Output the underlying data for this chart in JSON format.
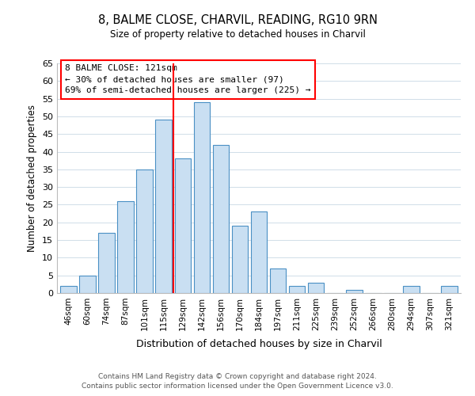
{
  "title": "8, BALME CLOSE, CHARVIL, READING, RG10 9RN",
  "subtitle": "Size of property relative to detached houses in Charvil",
  "xlabel": "Distribution of detached houses by size in Charvil",
  "ylabel": "Number of detached properties",
  "bar_labels": [
    "46sqm",
    "60sqm",
    "74sqm",
    "87sqm",
    "101sqm",
    "115sqm",
    "129sqm",
    "142sqm",
    "156sqm",
    "170sqm",
    "184sqm",
    "197sqm",
    "211sqm",
    "225sqm",
    "239sqm",
    "252sqm",
    "266sqm",
    "280sqm",
    "294sqm",
    "307sqm",
    "321sqm"
  ],
  "bar_values": [
    2,
    5,
    17,
    26,
    35,
    49,
    38,
    54,
    42,
    19,
    23,
    7,
    2,
    3,
    0,
    1,
    0,
    0,
    2,
    0,
    2
  ],
  "bar_color": "#c9dff2",
  "bar_edge_color": "#4a90c4",
  "ylim": [
    0,
    65
  ],
  "yticks": [
    0,
    5,
    10,
    15,
    20,
    25,
    30,
    35,
    40,
    45,
    50,
    55,
    60,
    65
  ],
  "red_line_index": 5.5,
  "annotation_title": "8 BALME CLOSE: 121sqm",
  "annotation_line1": "← 30% of detached houses are smaller (97)",
  "annotation_line2": "69% of semi-detached houses are larger (225) →",
  "footer_line1": "Contains HM Land Registry data © Crown copyright and database right 2024.",
  "footer_line2": "Contains public sector information licensed under the Open Government Licence v3.0.",
  "background_color": "#ffffff",
  "grid_color": "#d0dde8"
}
